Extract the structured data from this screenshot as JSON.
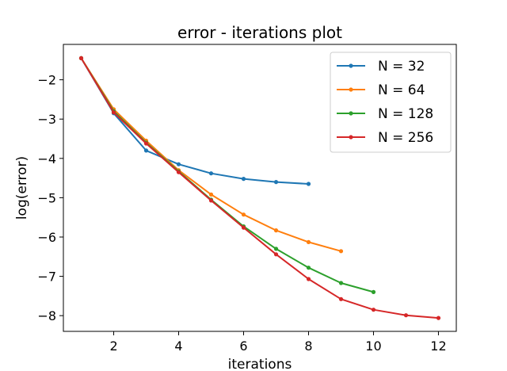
{
  "chart_data": {
    "type": "line",
    "title": "error - iterations plot",
    "xlabel": "iterations",
    "ylabel": "log(error)",
    "xlim": [
      0.45,
      12.55
    ],
    "ylim": [
      -8.4,
      -1.1
    ],
    "xticks": [
      2,
      4,
      6,
      8,
      10,
      12
    ],
    "yticks": [
      -2,
      -3,
      -4,
      -5,
      -6,
      -7,
      -8
    ],
    "xtick_labels": [
      "2",
      "4",
      "6",
      "8",
      "10",
      "12"
    ],
    "ytick_labels": [
      "−2",
      "−3",
      "−4",
      "−5",
      "−6",
      "−7",
      "−8"
    ],
    "grid": false,
    "legend_position": "top-right",
    "series": [
      {
        "name": "N = 32",
        "color": "#1f77b4",
        "x": [
          1,
          2,
          3,
          4,
          5,
          6,
          7,
          8
        ],
        "values": [
          -1.45,
          -2.85,
          -3.8,
          -4.15,
          -4.38,
          -4.52,
          -4.6,
          -4.65
        ]
      },
      {
        "name": "N = 64",
        "color": "#ff7f0e",
        "x": [
          1,
          2,
          3,
          4,
          5,
          6,
          7,
          8,
          9
        ],
        "values": [
          -1.45,
          -2.75,
          -3.55,
          -4.3,
          -4.92,
          -5.43,
          -5.83,
          -6.13,
          -6.36
        ]
      },
      {
        "name": "N = 128",
        "color": "#2ca02c",
        "x": [
          1,
          2,
          3,
          4,
          5,
          6,
          7,
          8,
          9,
          10
        ],
        "values": [
          -1.45,
          -2.8,
          -3.6,
          -4.33,
          -5.05,
          -5.73,
          -6.3,
          -6.78,
          -7.17,
          -7.4
        ]
      },
      {
        "name": "N = 256",
        "color": "#d62728",
        "x": [
          1,
          2,
          3,
          4,
          5,
          6,
          7,
          8,
          9,
          10,
          11,
          12
        ],
        "values": [
          -1.45,
          -2.83,
          -3.62,
          -4.35,
          -5.07,
          -5.76,
          -6.44,
          -7.07,
          -7.58,
          -7.85,
          -7.99,
          -8.06
        ]
      }
    ]
  }
}
